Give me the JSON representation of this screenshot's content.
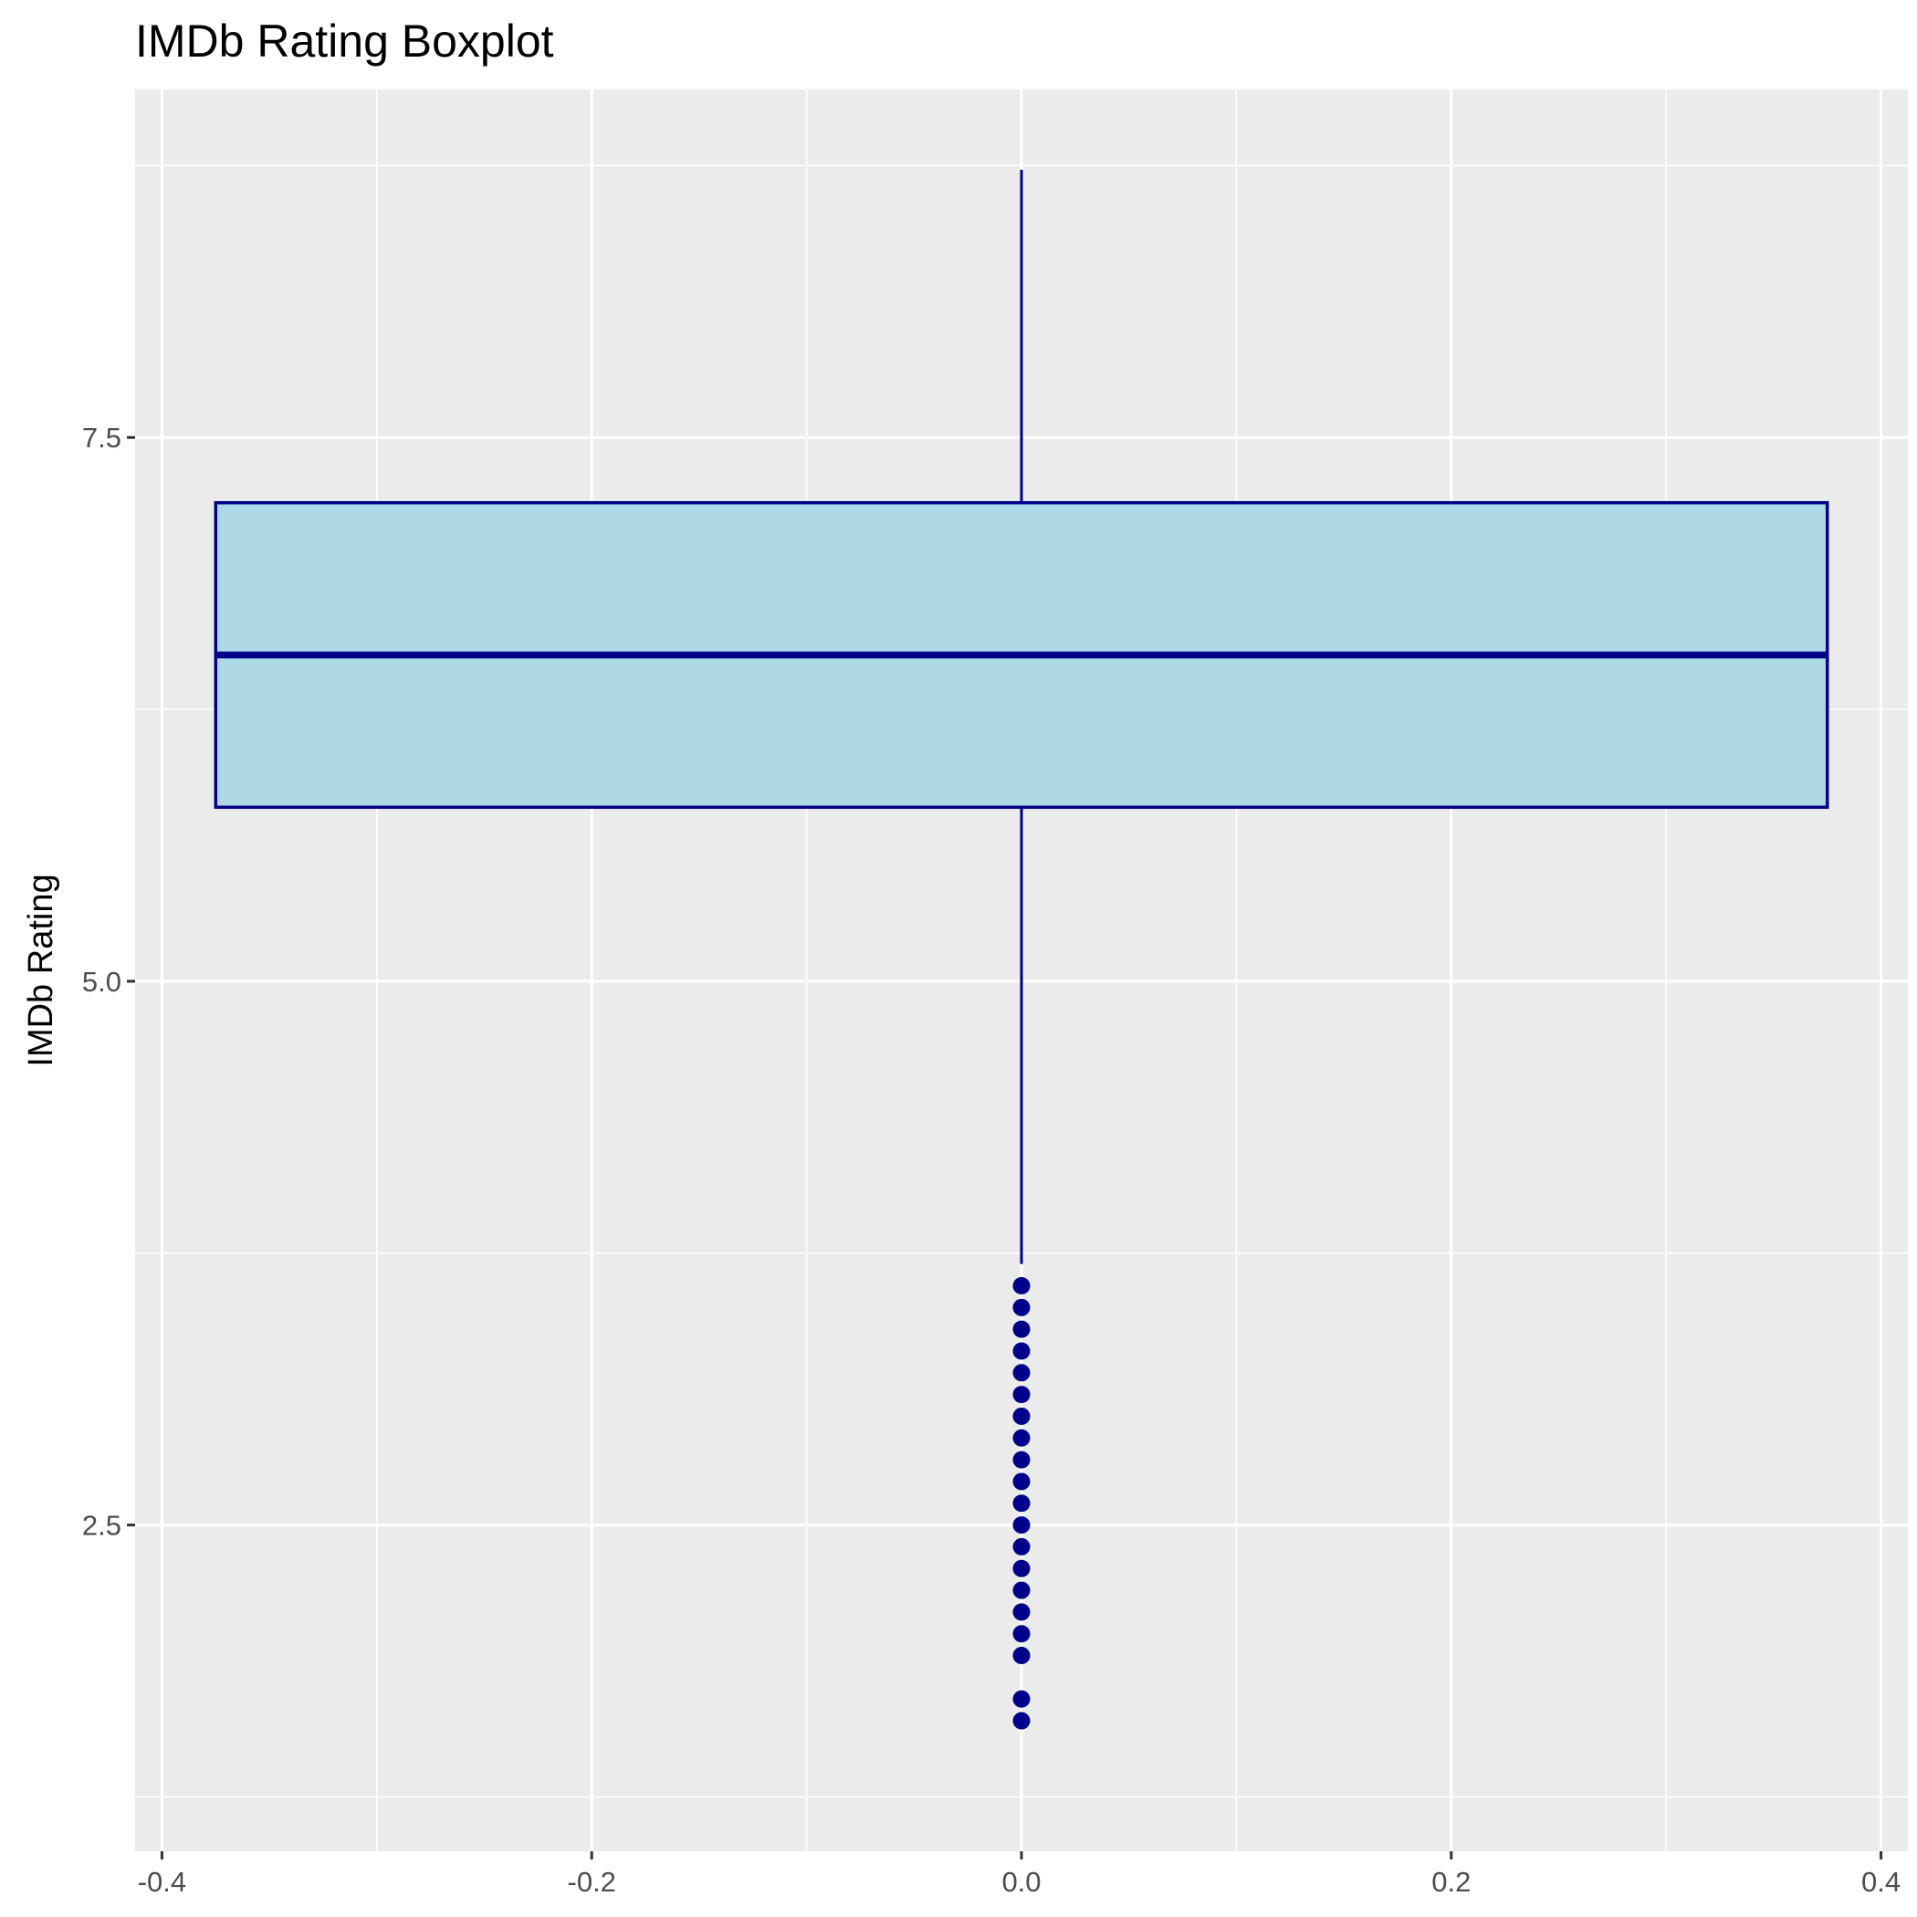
{
  "chart_data": {
    "type": "boxplot",
    "title": "IMDb Rating Boxplot",
    "xlabel": "",
    "ylabel": "IMDb Rating",
    "xlim": [
      -0.4125,
      0.4125
    ],
    "ylim": [
      1.0,
      9.1
    ],
    "x_ticks": [
      -0.4,
      -0.2,
      0.0,
      0.2,
      0.4
    ],
    "x_tick_labels": [
      "-0.4",
      "-0.2",
      "0.0",
      "0.2",
      "0.4"
    ],
    "y_ticks": [
      2.5,
      5.0,
      7.5
    ],
    "y_tick_labels": [
      "2.5",
      "5.0",
      "7.5"
    ],
    "grid": true,
    "box": {
      "x": 0.0,
      "xmin": -0.375,
      "xmax": 0.375,
      "whisker_low": 3.7,
      "q1": 5.8,
      "median": 6.5,
      "q3": 7.2,
      "whisker_high": 9.3
    },
    "outliers": [
      3.6,
      3.5,
      3.4,
      3.3,
      3.2,
      3.1,
      3.0,
      2.9,
      2.8,
      2.7,
      2.6,
      2.5,
      2.4,
      2.3,
      2.2,
      2.1,
      2.0,
      1.9,
      1.7,
      1.6
    ],
    "colors": {
      "panel": "#ebebeb",
      "grid": "#ffffff",
      "box_fill": "#add8e6",
      "box_line": "#00008b",
      "tick_text": "#4d4d4d",
      "tick_mark": "#333333"
    }
  }
}
